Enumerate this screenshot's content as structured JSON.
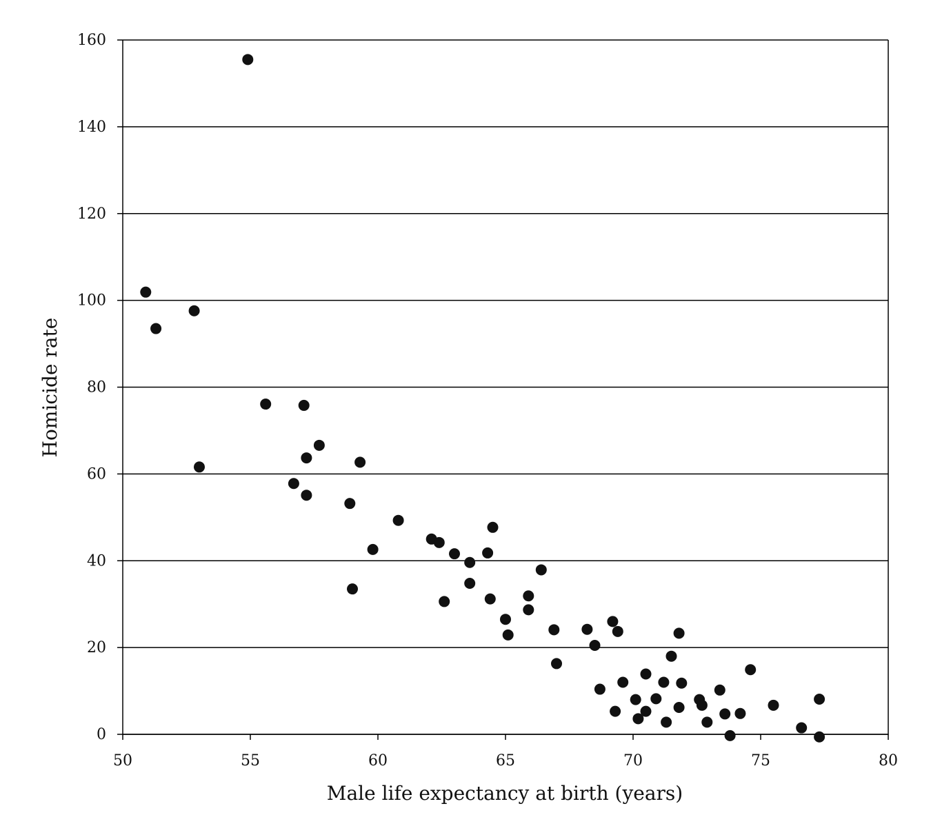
{
  "chart_data": {
    "type": "scatter",
    "xlabel": "Male life expectancy at birth (years)",
    "ylabel": "Homicide rate",
    "xlim": [
      50,
      80
    ],
    "ylim": [
      0,
      160
    ],
    "x_ticks": [
      "50",
      "55",
      "60",
      "65",
      "70",
      "75",
      "80"
    ],
    "y_ticks": [
      "0",
      "20",
      "40",
      "60",
      "80",
      "100",
      "120",
      "140",
      "160"
    ],
    "grid": "horizontal",
    "marker_color": "#111111",
    "points": [
      {
        "x": 50.9,
        "y": 101.9
      },
      {
        "x": 51.3,
        "y": 93.5
      },
      {
        "x": 52.8,
        "y": 97.6
      },
      {
        "x": 53.0,
        "y": 61.6
      },
      {
        "x": 54.9,
        "y": 155.5
      },
      {
        "x": 55.6,
        "y": 76.1
      },
      {
        "x": 56.7,
        "y": 57.8
      },
      {
        "x": 57.1,
        "y": 75.8
      },
      {
        "x": 57.2,
        "y": 63.7
      },
      {
        "x": 57.2,
        "y": 55.1
      },
      {
        "x": 57.7,
        "y": 66.6
      },
      {
        "x": 58.9,
        "y": 53.2
      },
      {
        "x": 59.0,
        "y": 33.5
      },
      {
        "x": 59.3,
        "y": 62.7
      },
      {
        "x": 59.8,
        "y": 42.6
      },
      {
        "x": 60.8,
        "y": 49.3
      },
      {
        "x": 62.1,
        "y": 45.0
      },
      {
        "x": 62.4,
        "y": 44.2
      },
      {
        "x": 62.6,
        "y": 30.6
      },
      {
        "x": 63.0,
        "y": 41.6
      },
      {
        "x": 63.6,
        "y": 39.6
      },
      {
        "x": 63.6,
        "y": 34.8
      },
      {
        "x": 64.3,
        "y": 41.8
      },
      {
        "x": 64.4,
        "y": 31.2
      },
      {
        "x": 64.5,
        "y": 47.7
      },
      {
        "x": 65.0,
        "y": 26.5
      },
      {
        "x": 65.1,
        "y": 22.9
      },
      {
        "x": 65.9,
        "y": 31.9
      },
      {
        "x": 65.9,
        "y": 28.7
      },
      {
        "x": 66.4,
        "y": 37.9
      },
      {
        "x": 66.9,
        "y": 24.1
      },
      {
        "x": 67.0,
        "y": 16.3
      },
      {
        "x": 68.2,
        "y": 24.2
      },
      {
        "x": 68.5,
        "y": 20.5
      },
      {
        "x": 68.7,
        "y": 10.4
      },
      {
        "x": 69.2,
        "y": 26.0
      },
      {
        "x": 69.3,
        "y": 5.3
      },
      {
        "x": 69.4,
        "y": 23.7
      },
      {
        "x": 69.6,
        "y": 12.0
      },
      {
        "x": 70.1,
        "y": 8.0
      },
      {
        "x": 70.2,
        "y": 3.6
      },
      {
        "x": 70.5,
        "y": 13.9
      },
      {
        "x": 70.5,
        "y": 5.3
      },
      {
        "x": 70.9,
        "y": 8.2
      },
      {
        "x": 71.2,
        "y": 12.0
      },
      {
        "x": 71.3,
        "y": 2.8
      },
      {
        "x": 71.5,
        "y": 18.0
      },
      {
        "x": 71.8,
        "y": 23.3
      },
      {
        "x": 71.8,
        "y": 6.2
      },
      {
        "x": 71.9,
        "y": 11.8
      },
      {
        "x": 72.6,
        "y": 8.0
      },
      {
        "x": 72.7,
        "y": 6.7
      },
      {
        "x": 72.9,
        "y": 2.8
      },
      {
        "x": 73.4,
        "y": 10.2
      },
      {
        "x": 73.6,
        "y": 4.7
      },
      {
        "x": 73.8,
        "y": -0.3
      },
      {
        "x": 74.2,
        "y": 4.8
      },
      {
        "x": 74.6,
        "y": 14.9
      },
      {
        "x": 75.5,
        "y": 6.7
      },
      {
        "x": 76.6,
        "y": 1.5
      },
      {
        "x": 77.3,
        "y": -0.6
      },
      {
        "x": 77.3,
        "y": 8.1
      }
    ]
  }
}
